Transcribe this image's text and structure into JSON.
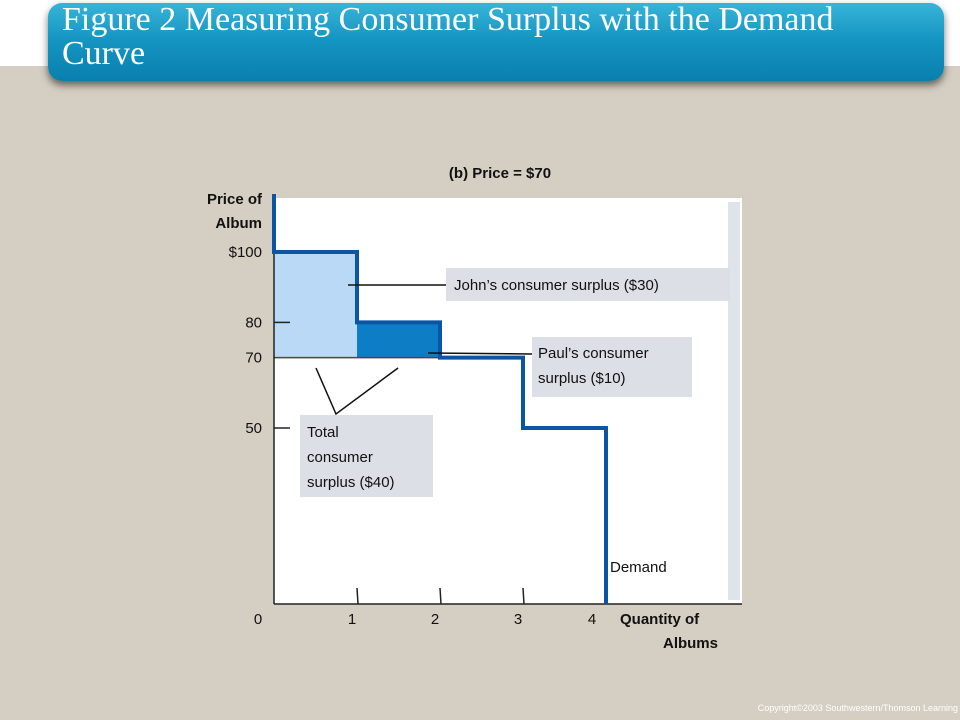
{
  "title": "Figure 2 Measuring Consumer Surplus with the Demand Curve",
  "copyright": "Copyright©2003  Southwestern/Thomson Learning",
  "chart_data": {
    "type": "area",
    "title": "(b) Price = $70",
    "ylabel": [
      "Price of",
      "Album"
    ],
    "xlabel": [
      "Quantity of",
      "Albums"
    ],
    "xlim": [
      0,
      4
    ],
    "ylim": [
      0,
      100
    ],
    "market_price": 70,
    "x_ticks": [
      "0",
      "1",
      "2",
      "3",
      "4"
    ],
    "y_ticks": [
      {
        "value": 100,
        "label": "$100"
      },
      {
        "value": 80,
        "label": "80"
      },
      {
        "value": 70,
        "label": "70"
      },
      {
        "value": 50,
        "label": "50"
      }
    ],
    "series": [
      {
        "name": "Demand",
        "x": [
          0,
          1,
          1,
          2,
          2,
          3,
          3,
          4,
          4
        ],
        "y": [
          100,
          100,
          80,
          80,
          70,
          70,
          50,
          50,
          0
        ]
      }
    ],
    "shaded_regions": [
      {
        "label": "John’s consumer surplus ($30)",
        "x": [
          0,
          1
        ],
        "y": [
          70,
          100
        ],
        "color": "#b9d9f7"
      },
      {
        "label": "Paul’s consumer surplus ($10)",
        "x": [
          1,
          2
        ],
        "y": [
          70,
          80
        ],
        "color": "#0d7dc6"
      }
    ],
    "annotations": {
      "john": "John’s consumer surplus ($30)",
      "paul": [
        "Paul’s consumer",
        "surplus ($10)"
      ],
      "total": [
        "Total",
        "consumer",
        "surplus ($40)"
      ],
      "demand": "Demand"
    },
    "colors": {
      "demand_line": "#0b56a4",
      "price_line": "#6a3a3a",
      "plot_bg": "#ffffff",
      "label_box": "#dcdfe6"
    }
  }
}
